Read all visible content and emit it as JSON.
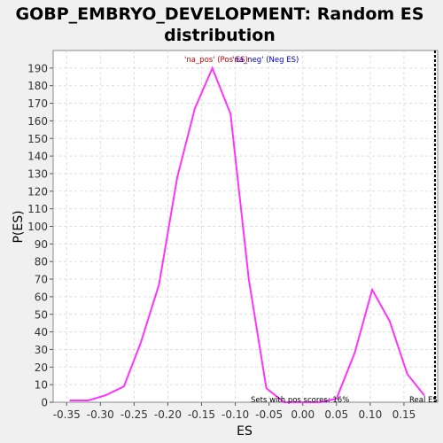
{
  "chart_data": {
    "type": "line",
    "title": "GOBP_EMBRYO_DEVELOPMENT: Random ES distribution",
    "title_lines": [
      "GOBP_EMBRYO_DEVELOPMENT: Random ES",
      "distribution"
    ],
    "xlabel": "ES",
    "ylabel": "P(ES)",
    "xlim": [
      -0.37,
      0.2
    ],
    "ylim": [
      0,
      200
    ],
    "x_ticks": [
      -0.35,
      -0.3,
      -0.25,
      -0.2,
      -0.15,
      -0.1,
      -0.05,
      0.0,
      0.05,
      0.1,
      0.15
    ],
    "x_tick_labels": [
      "-0.35",
      "-0.30",
      "-0.25",
      "-0.20",
      "-0.15",
      "-0.10",
      "-0.05",
      "0.00",
      "0.05",
      "0.10",
      "0.15"
    ],
    "y_ticks": [
      0,
      10,
      20,
      30,
      40,
      50,
      60,
      70,
      80,
      90,
      100,
      110,
      120,
      130,
      140,
      150,
      160,
      170,
      180,
      190
    ],
    "grid": true,
    "series": [
      {
        "color": "#ff33ff",
        "x": [
          -0.345,
          -0.318,
          -0.292,
          -0.265,
          -0.24,
          -0.213,
          -0.186,
          -0.16,
          -0.134,
          -0.107,
          -0.08,
          -0.054,
          -0.028,
          -0.002,
          0.025,
          0.05,
          0.077,
          0.103,
          0.129,
          0.155,
          0.18
        ],
        "y": [
          1,
          1,
          4,
          9,
          34,
          67,
          128,
          167,
          190,
          164,
          70,
          8,
          0,
          0,
          0,
          2,
          28,
          64,
          46,
          16,
          4
        ]
      }
    ],
    "legend": {
      "placement": "top-center",
      "text_pos": "'na_pos' (Pos ES)",
      "text_neg": "'na_neg' (Neg ES)",
      "color_pos": "#cc0000",
      "color_neg": "#0000cc"
    },
    "annotations": {
      "pos_scores": "Sets with pos scores: 16%",
      "real_es_label": "Real ES",
      "real_es_x": 0.196
    }
  }
}
